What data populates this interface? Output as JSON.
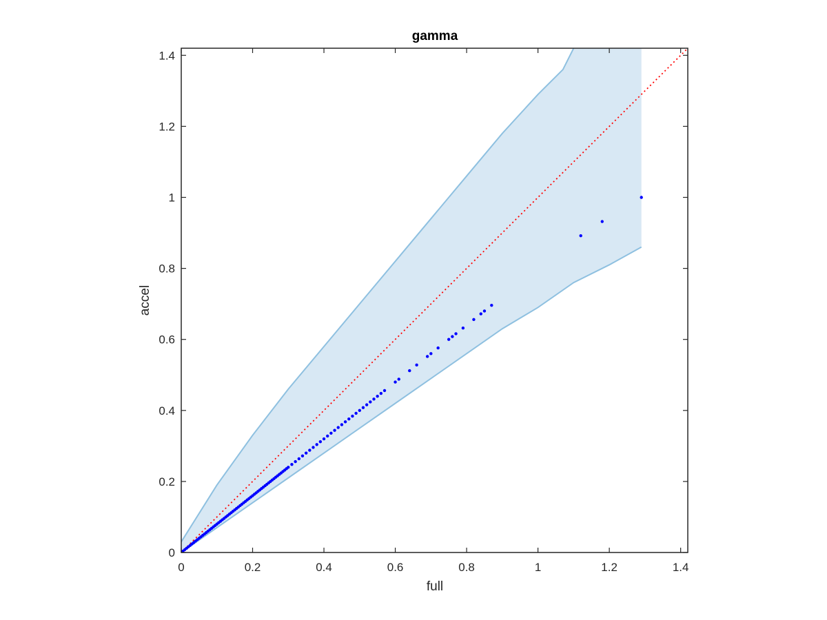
{
  "chart_data": {
    "type": "scatter",
    "title": "gamma",
    "xlabel": "full",
    "ylabel": "accel",
    "xlim": [
      0,
      1.42
    ],
    "ylim": [
      0,
      1.42
    ],
    "xticks": [
      0,
      0.2,
      0.4,
      0.6,
      0.8,
      1,
      1.2,
      1.4
    ],
    "yticks": [
      0,
      0.2,
      0.4,
      0.6,
      0.8,
      1,
      1.2,
      1.4
    ],
    "xtick_labels": [
      "0",
      "0.2",
      "0.4",
      "0.6",
      "0.8",
      "1",
      "1.2",
      "1.4"
    ],
    "ytick_labels": [
      "0",
      "0.2",
      "0.4",
      "0.6",
      "0.8",
      "1",
      "1.2",
      "1.4"
    ],
    "grid": false,
    "colors": {
      "points": "#0000ff",
      "reference_line": "#ff0000",
      "band_fill": "#d8e8f4",
      "band_edge": "#8ec0e0",
      "axes": "#262626"
    },
    "band": {
      "upper": [
        [
          0,
          0.03
        ],
        [
          0.1,
          0.19
        ],
        [
          0.2,
          0.33
        ],
        [
          0.3,
          0.46
        ],
        [
          0.4,
          0.58
        ],
        [
          0.5,
          0.7
        ],
        [
          0.6,
          0.82
        ],
        [
          0.7,
          0.94
        ],
        [
          0.8,
          1.06
        ],
        [
          0.9,
          1.18
        ],
        [
          1.0,
          1.29
        ],
        [
          1.07,
          1.36
        ],
        [
          1.1,
          1.42
        ],
        [
          1.29,
          1.42
        ]
      ],
      "lower": [
        [
          0,
          0.0
        ],
        [
          0.1,
          0.07
        ],
        [
          0.2,
          0.14
        ],
        [
          0.3,
          0.21
        ],
        [
          0.4,
          0.28
        ],
        [
          0.5,
          0.35
        ],
        [
          0.6,
          0.42
        ],
        [
          0.7,
          0.49
        ],
        [
          0.8,
          0.56
        ],
        [
          0.9,
          0.63
        ],
        [
          1.0,
          0.69
        ],
        [
          1.1,
          0.76
        ],
        [
          1.2,
          0.81
        ],
        [
          1.29,
          0.86
        ]
      ]
    },
    "reference_line": {
      "x": [
        0,
        1.42
      ],
      "y": [
        0,
        1.42
      ],
      "style": "dotted"
    },
    "points": {
      "x": [
        0,
        0.005,
        0.01,
        0.015,
        0.02,
        0.025,
        0.03,
        0.035,
        0.04,
        0.045,
        0.05,
        0.055,
        0.06,
        0.065,
        0.07,
        0.075,
        0.08,
        0.085,
        0.09,
        0.095,
        0.1,
        0.105,
        0.11,
        0.115,
        0.12,
        0.125,
        0.13,
        0.135,
        0.14,
        0.145,
        0.15,
        0.155,
        0.16,
        0.165,
        0.17,
        0.175,
        0.18,
        0.185,
        0.19,
        0.195,
        0.2,
        0.205,
        0.21,
        0.215,
        0.22,
        0.225,
        0.23,
        0.235,
        0.24,
        0.245,
        0.25,
        0.255,
        0.26,
        0.265,
        0.27,
        0.275,
        0.28,
        0.285,
        0.29,
        0.295,
        0.3,
        0.31,
        0.32,
        0.33,
        0.34,
        0.35,
        0.36,
        0.37,
        0.38,
        0.39,
        0.4,
        0.41,
        0.42,
        0.43,
        0.44,
        0.45,
        0.46,
        0.47,
        0.48,
        0.49,
        0.5,
        0.51,
        0.52,
        0.53,
        0.54,
        0.55,
        0.56,
        0.57,
        0.6,
        0.61,
        0.64,
        0.66,
        0.69,
        0.7,
        0.72,
        0.75,
        0.76,
        0.77,
        0.79,
        0.82,
        0.84,
        0.85,
        0.87,
        1.12,
        1.18,
        1.29
      ],
      "y": [
        0,
        0.004,
        0.008,
        0.012,
        0.016,
        0.02,
        0.024,
        0.028,
        0.032,
        0.036,
        0.04,
        0.044,
        0.048,
        0.052,
        0.056,
        0.06,
        0.064,
        0.068,
        0.072,
        0.076,
        0.08,
        0.084,
        0.088,
        0.092,
        0.096,
        0.1,
        0.104,
        0.108,
        0.112,
        0.116,
        0.12,
        0.124,
        0.128,
        0.132,
        0.136,
        0.14,
        0.144,
        0.148,
        0.152,
        0.156,
        0.16,
        0.164,
        0.168,
        0.172,
        0.176,
        0.18,
        0.184,
        0.188,
        0.192,
        0.196,
        0.2,
        0.204,
        0.208,
        0.212,
        0.216,
        0.22,
        0.224,
        0.228,
        0.232,
        0.236,
        0.24,
        0.248,
        0.256,
        0.264,
        0.272,
        0.28,
        0.288,
        0.296,
        0.304,
        0.312,
        0.32,
        0.328,
        0.336,
        0.344,
        0.352,
        0.36,
        0.368,
        0.376,
        0.384,
        0.392,
        0.4,
        0.408,
        0.416,
        0.424,
        0.432,
        0.44,
        0.448,
        0.456,
        0.48,
        0.488,
        0.512,
        0.528,
        0.552,
        0.56,
        0.576,
        0.6,
        0.608,
        0.616,
        0.632,
        0.656,
        0.672,
        0.68,
        0.696,
        0.892,
        0.932,
        1.0
      ]
    }
  }
}
